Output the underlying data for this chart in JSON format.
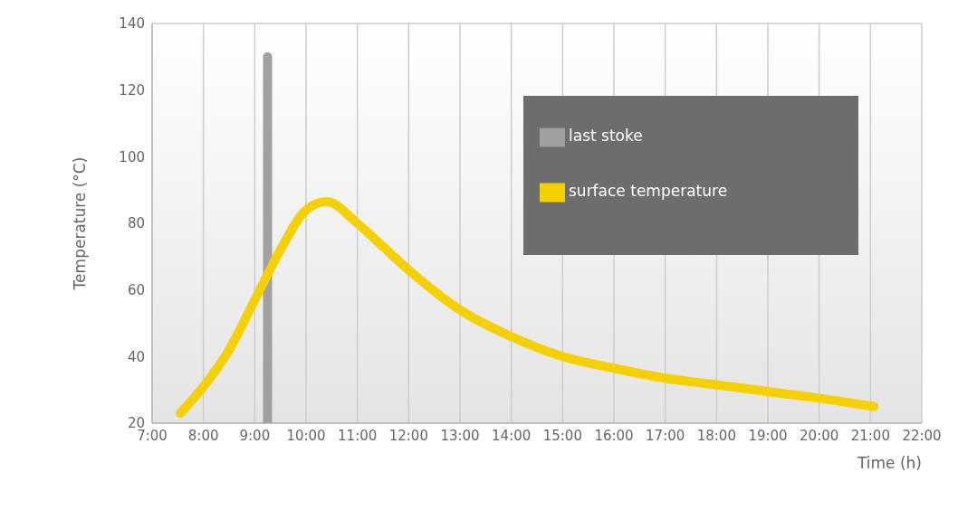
{
  "chart_data": {
    "type": "line",
    "xlabel": "Time (h)",
    "ylabel": "Temperature (°C)",
    "xlim": [
      7,
      22
    ],
    "xticks": [
      {
        "value": 7,
        "label": "7:00"
      },
      {
        "value": 8,
        "label": "8:00"
      },
      {
        "value": 9,
        "label": "9:00"
      },
      {
        "value": 10,
        "label": "10:00"
      },
      {
        "value": 11,
        "label": "11:00"
      },
      {
        "value": 12,
        "label": "12:00"
      },
      {
        "value": 13,
        "label": "13:00"
      },
      {
        "value": 14,
        "label": "14:00"
      },
      {
        "value": 15,
        "label": "15:00"
      },
      {
        "value": 16,
        "label": "16:00"
      },
      {
        "value": 17,
        "label": "17:00"
      },
      {
        "value": 18,
        "label": "18:00"
      },
      {
        "value": 19,
        "label": "19:00"
      },
      {
        "value": 20,
        "label": "20:00"
      },
      {
        "value": 21,
        "label": "21:00"
      },
      {
        "value": 22,
        "label": "22:00"
      }
    ],
    "ylim": [
      20,
      140
    ],
    "yticks": [
      20,
      40,
      60,
      80,
      100,
      120,
      140
    ],
    "grid": true,
    "legend": "top right",
    "marker": "none",
    "line_style": "solid",
    "series": [
      {
        "name": "surface temperature",
        "color": "#f5d000",
        "x": [
          7.55,
          8,
          8.5,
          9,
          9.5,
          10,
          10.4,
          11,
          11.5,
          12,
          13,
          14,
          15,
          16,
          17,
          18,
          19,
          20,
          21.07
        ],
        "values": [
          23,
          31,
          42,
          57,
          72,
          84,
          86.5,
          80,
          73,
          66,
          54,
          46,
          40,
          36.5,
          33.5,
          31.5,
          29.5,
          27.5,
          25
        ]
      },
      {
        "name": "last stoke",
        "color": "#a0a0a0",
        "x": [
          9.25,
          9.25
        ],
        "values": [
          20,
          130
        ]
      }
    ]
  }
}
